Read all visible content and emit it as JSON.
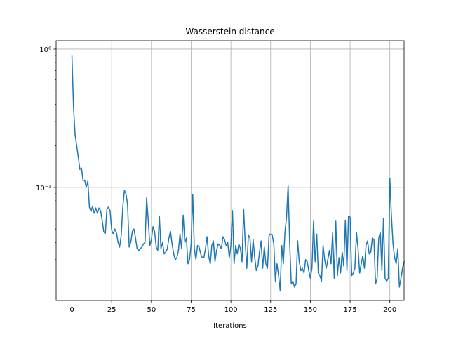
{
  "chart_data": {
    "type": "line",
    "title": "Wasserstein distance",
    "xlabel": "Iterations",
    "ylabel": "",
    "yscale": "log",
    "xlim": [
      -9.95,
      208.95
    ],
    "ylim": [
      0.0152,
      1.15
    ],
    "grid": true,
    "x_ticks": [
      0,
      25,
      50,
      75,
      100,
      125,
      150,
      175,
      200
    ],
    "x_tick_labels": [
      "0",
      "25",
      "50",
      "75",
      "100",
      "125",
      "150",
      "175",
      "200"
    ],
    "y_ticks": [
      1,
      0.1
    ],
    "y_tick_labels": [
      "10⁰",
      "10⁻¹"
    ],
    "series": [
      {
        "color": "#1f77b4",
        "x_start": 0,
        "x_step": 1,
        "values": [
          0.89,
          0.38,
          0.24,
          0.2,
          0.165,
          0.135,
          0.138,
          0.112,
          0.113,
          0.1,
          0.111,
          0.072,
          0.067,
          0.073,
          0.065,
          0.071,
          0.065,
          0.071,
          0.068,
          0.058,
          0.048,
          0.046,
          0.07,
          0.072,
          0.068,
          0.049,
          0.046,
          0.05,
          0.047,
          0.04,
          0.037,
          0.045,
          0.072,
          0.095,
          0.09,
          0.075,
          0.037,
          0.04,
          0.048,
          0.05,
          0.043,
          0.036,
          0.035,
          0.036,
          0.037,
          0.039,
          0.04,
          0.084,
          0.058,
          0.038,
          0.042,
          0.052,
          0.048,
          0.037,
          0.035,
          0.062,
          0.036,
          0.04,
          0.033,
          0.034,
          0.036,
          0.043,
          0.048,
          0.039,
          0.033,
          0.03,
          0.031,
          0.035,
          0.046,
          0.036,
          0.063,
          0.04,
          0.043,
          0.028,
          0.03,
          0.039,
          0.089,
          0.036,
          0.03,
          0.038,
          0.037,
          0.033,
          0.031,
          0.031,
          0.036,
          0.044,
          0.032,
          0.028,
          0.038,
          0.041,
          0.029,
          0.035,
          0.039,
          0.038,
          0.036,
          0.044,
          0.042,
          0.038,
          0.04,
          0.031,
          0.038,
          0.068,
          0.028,
          0.038,
          0.033,
          0.039,
          0.036,
          0.029,
          0.07,
          0.04,
          0.026,
          0.045,
          0.043,
          0.029,
          0.042,
          0.031,
          0.025,
          0.027,
          0.034,
          0.041,
          0.026,
          0.037,
          0.028,
          0.026,
          0.045,
          0.046,
          0.045,
          0.039,
          0.021,
          0.028,
          0.023,
          0.018,
          0.038,
          0.028,
          0.047,
          0.061,
          0.103,
          0.039,
          0.02,
          0.021,
          0.019,
          0.02,
          0.041,
          0.029,
          0.025,
          0.026,
          0.024,
          0.03,
          0.029,
          0.025,
          0.022,
          0.026,
          0.057,
          0.029,
          0.046,
          0.024,
          0.023,
          0.021,
          0.038,
          0.03,
          0.026,
          0.03,
          0.035,
          0.028,
          0.047,
          0.022,
          0.057,
          0.023,
          0.031,
          0.024,
          0.034,
          0.027,
          0.058,
          0.025,
          0.062,
          0.061,
          0.023,
          0.024,
          0.026,
          0.047,
          0.036,
          0.024,
          0.028,
          0.032,
          0.026,
          0.038,
          0.041,
          0.033,
          0.034,
          0.043,
          0.042,
          0.02,
          0.022,
          0.043,
          0.047,
          0.025,
          0.06,
          0.022,
          0.021,
          0.022,
          0.116,
          0.062,
          0.039,
          0.031,
          0.028,
          0.036,
          0.019,
          0.022,
          0.026,
          0.029
        ]
      }
    ]
  }
}
